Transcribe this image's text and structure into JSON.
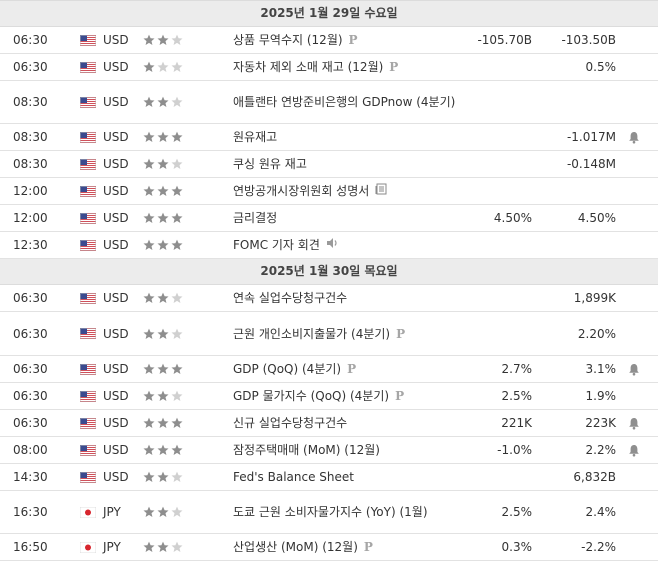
{
  "days": [
    {
      "title": "2025년 1월 29일 수요일",
      "events": [
        {
          "time": "06:30",
          "country": "us",
          "currency": "USD",
          "stars": 2,
          "name": "상품 무역수지 (12월)",
          "icon": "p",
          "actual": "",
          "forecast": "-105.70B",
          "previous": "-103.50B",
          "bell": false,
          "h": 26
        },
        {
          "time": "06:30",
          "country": "us",
          "currency": "USD",
          "stars": 1,
          "name": "자동차 제외 소매 재고 (12월)",
          "icon": "p",
          "actual": "",
          "forecast": "",
          "previous": "0.5%",
          "bell": false,
          "h": 26
        },
        {
          "time": "08:30",
          "country": "us",
          "currency": "USD",
          "stars": 2,
          "name": "애틀랜타 연방준비은행의 GDPnow (4분기)",
          "icon": "",
          "actual": "",
          "forecast": "",
          "previous": "",
          "bell": false,
          "h": 42
        },
        {
          "time": "08:30",
          "country": "us",
          "currency": "USD",
          "stars": 3,
          "name": "원유재고",
          "icon": "",
          "actual": "",
          "forecast": "",
          "previous": "-1.017M",
          "bell": true,
          "h": 26
        },
        {
          "time": "08:30",
          "country": "us",
          "currency": "USD",
          "stars": 2,
          "name": "쿠싱 원유 재고",
          "icon": "",
          "actual": "",
          "forecast": "",
          "previous": "-0.148M",
          "bell": false,
          "h": 26
        },
        {
          "time": "12:00",
          "country": "us",
          "currency": "USD",
          "stars": 3,
          "name": "연방공개시장위원회 성명서",
          "icon": "doc",
          "actual": "",
          "forecast": "",
          "previous": "",
          "bell": false,
          "h": 26
        },
        {
          "time": "12:00",
          "country": "us",
          "currency": "USD",
          "stars": 3,
          "name": "금리결정",
          "icon": "",
          "actual": "",
          "forecast": "4.50%",
          "previous": "4.50%",
          "bell": false,
          "h": 26
        },
        {
          "time": "12:30",
          "country": "us",
          "currency": "USD",
          "stars": 3,
          "name": "FOMC 기자 회견",
          "icon": "speaker",
          "actual": "",
          "forecast": "",
          "previous": "",
          "bell": false,
          "h": 26
        }
      ]
    },
    {
      "title": "2025년 1월 30일 목요일",
      "events": [
        {
          "time": "06:30",
          "country": "us",
          "currency": "USD",
          "stars": 2,
          "name": "연속 실업수당청구건수",
          "icon": "",
          "actual": "",
          "forecast": "",
          "previous": "1,899K",
          "bell": false,
          "h": 26
        },
        {
          "time": "06:30",
          "country": "us",
          "currency": "USD",
          "stars": 2,
          "name": "근원 개인소비지출물가 (4분기)",
          "icon": "p",
          "actual": "",
          "forecast": "",
          "previous": "2.20%",
          "bell": false,
          "h": 43
        },
        {
          "time": "06:30",
          "country": "us",
          "currency": "USD",
          "stars": 3,
          "name": "GDP (QoQ) (4분기)",
          "icon": "p",
          "actual": "",
          "forecast": "2.7%",
          "previous": "3.1%",
          "bell": true,
          "h": 26
        },
        {
          "time": "06:30",
          "country": "us",
          "currency": "USD",
          "stars": 2,
          "name": "GDP 물가지수 (QoQ) (4분기)",
          "icon": "p",
          "actual": "",
          "forecast": "2.5%",
          "previous": "1.9%",
          "bell": false,
          "h": 26
        },
        {
          "time": "06:30",
          "country": "us",
          "currency": "USD",
          "stars": 3,
          "name": "신규 실업수당청구건수",
          "icon": "",
          "actual": "",
          "forecast": "221K",
          "previous": "223K",
          "bell": true,
          "h": 26
        },
        {
          "time": "08:00",
          "country": "us",
          "currency": "USD",
          "stars": 3,
          "name": "잠정주택매매 (MoM) (12월)",
          "icon": "",
          "actual": "",
          "forecast": "-1.0%",
          "previous": "2.2%",
          "bell": true,
          "h": 26
        },
        {
          "time": "14:30",
          "country": "us",
          "currency": "USD",
          "stars": 2,
          "name": "Fed's Balance Sheet",
          "icon": "",
          "actual": "",
          "forecast": "",
          "previous": "6,832B",
          "bell": false,
          "h": 26
        },
        {
          "time": "16:30",
          "country": "jp",
          "currency": "JPY",
          "stars": 2,
          "name": "도쿄 근원 소비자물가지수 (YoY) (1월)",
          "icon": "",
          "actual": "",
          "forecast": "2.5%",
          "previous": "2.4%",
          "bell": false,
          "h": 42
        },
        {
          "time": "16:50",
          "country": "jp",
          "currency": "JPY",
          "stars": 2,
          "name": "산업생산 (MoM) (12월)",
          "icon": "p",
          "actual": "",
          "forecast": "0.3%",
          "previous": "-2.2%",
          "bell": false,
          "h": 26
        }
      ]
    }
  ],
  "colors": {
    "star_on": "#8e8e8e",
    "star_off": "#d0d0d0",
    "header_bg": "#ececec",
    "bell": "#8f8f8f"
  },
  "icons": {
    "p": "preliminary-p-icon",
    "doc": "document-icon",
    "speaker": "speaker-icon",
    "bell": "bell-icon",
    "us": "us-flag-icon",
    "jp": "japan-flag-icon"
  }
}
